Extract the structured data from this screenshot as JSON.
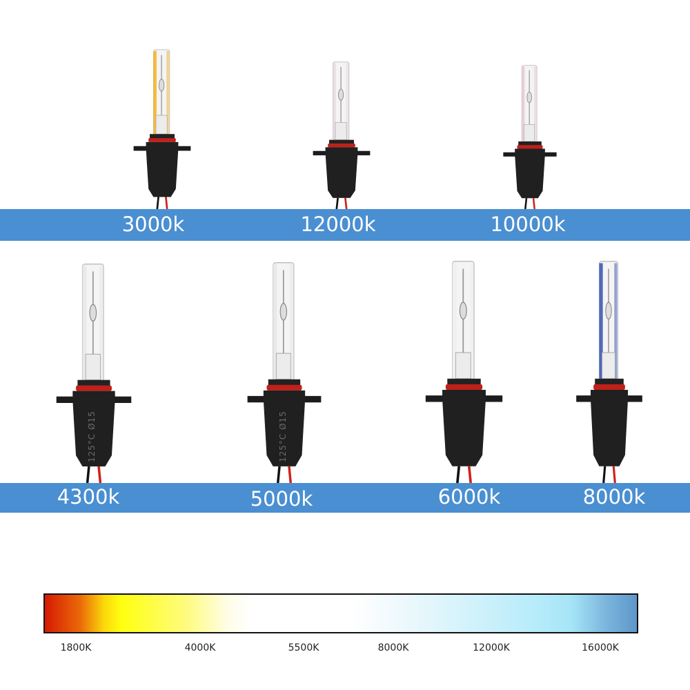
{
  "bulbs_top": [
    {
      "label": "3000k",
      "glass_tint": "#f3b21a"
    },
    {
      "label": "12000k",
      "glass_tint": "#e8d8e0"
    },
    {
      "label": "10000k",
      "glass_tint": "#e8c8d0"
    }
  ],
  "bulbs_bottom": [
    {
      "label": "4300k",
      "glass_tint": "#e6e6e6"
    },
    {
      "label": "5000k",
      "glass_tint": "#e6e6e6"
    },
    {
      "label": "6000k",
      "glass_tint": "#eeeeee"
    },
    {
      "label": "8000k",
      "glass_tint": "#3050b0"
    }
  ],
  "socket_text": "125°C  Ø15",
  "band_color": "#4a8fd1",
  "scale": {
    "ticks": [
      "1800K",
      "4000K",
      "5500K",
      "8000K",
      "12000K",
      "16000K"
    ]
  }
}
